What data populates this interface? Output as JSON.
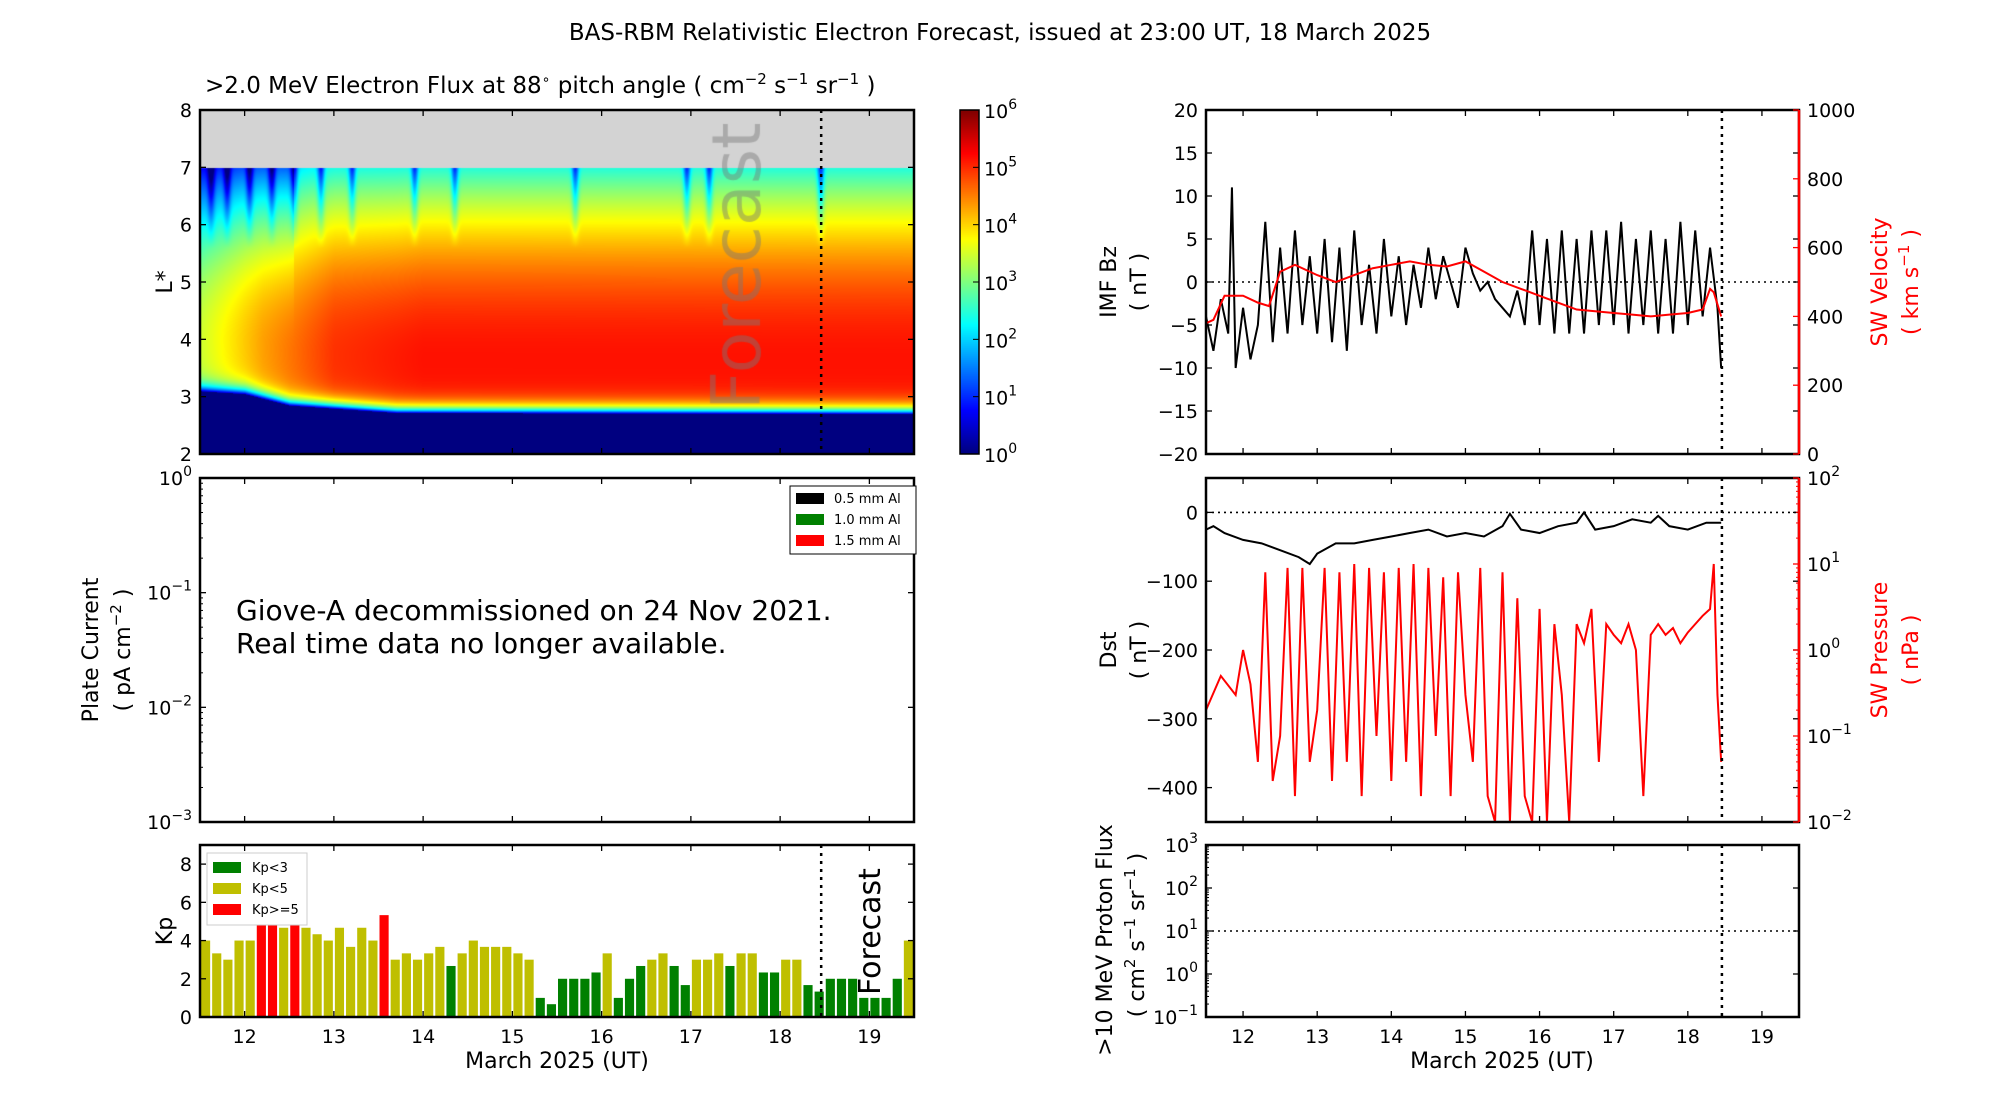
{
  "title": "BAS-RBM Relativistic Electron Forecast, issued at 23:00 UT, 18 March 2025",
  "forecast_label": "Forecast",
  "x_axis_label": "March 2025 (UT)",
  "x_ticks": [
    "12",
    "13",
    "14",
    "15",
    "16",
    "17",
    "18",
    "19"
  ],
  "forecast_start_day": 18.46,
  "colors": {
    "kp_low": "#008000",
    "kp_mid": "#bfbf00",
    "kp_high": "#ff0000",
    "secondary_axis": "#ff0000",
    "no_data": "#d3d3d3"
  },
  "chart_data": [
    {
      "type": "heatmap",
      "title": {
        "main": ">2.0 MeV Electron Flux at 88",
        "deg": "∘",
        "mid": " pitch angle ( cm",
        "e1": "−2",
        "s": " s",
        "e2": "−1",
        "sr": " sr",
        "e3": "−1",
        "end": " )"
      },
      "ylabel": "L*",
      "x_range": [
        11.5,
        19.5
      ],
      "ylim": [
        2,
        8
      ],
      "y_ticks": [
        "2",
        "3",
        "4",
        "5",
        "6",
        "7",
        "8"
      ],
      "colorbar": {
        "scale": "log",
        "range": [
          1,
          1000000
        ],
        "ticks": [
          {
            "base": "10",
            "exp": "0"
          },
          {
            "base": "10",
            "exp": "1"
          },
          {
            "base": "10",
            "exp": "2"
          },
          {
            "base": "10",
            "exp": "3"
          },
          {
            "base": "10",
            "exp": "4"
          },
          {
            "base": "10",
            "exp": "5"
          },
          {
            "base": "10",
            "exp": "6"
          }
        ],
        "colormap": "jet"
      },
      "outer_boundary_L": 7,
      "inner_edge_L": [
        {
          "day": 11.5,
          "L": 3.1
        },
        {
          "day": 12.0,
          "L": 3.05
        },
        {
          "day": 12.5,
          "L": 2.85
        },
        {
          "day": 13.7,
          "L": 2.72
        },
        {
          "day": 19.5,
          "L": 2.7
        }
      ],
      "peak_log_flux": [
        {
          "day": 11.5,
          "value": 3.3
        },
        {
          "day": 12.2,
          "value": 4.2
        },
        {
          "day": 13.0,
          "value": 4.9
        },
        {
          "day": 14.0,
          "value": 5.1
        },
        {
          "day": 19.5,
          "value": 5.1
        }
      ]
    },
    {
      "type": "line",
      "ylabel": {
        "l1": "Plate Current",
        "l2a": "( pA cm",
        "l2e": "−2",
        "l2b": " )"
      },
      "y_scale": "log",
      "ylim": [
        0.001,
        1
      ],
      "y_ticks": [
        {
          "base": "10",
          "exp": "0"
        },
        {
          "base": "10",
          "exp": "−1"
        },
        {
          "base": "10",
          "exp": "−2"
        },
        {
          "base": "10",
          "exp": "−3"
        }
      ],
      "annotation": [
        "Giove-A decommissioned on 24 Nov 2021.",
        "Real time data no longer available."
      ],
      "legend": [
        {
          "label": "0.5 mm Al",
          "color": "#000000"
        },
        {
          "label": "1.0 mm Al",
          "color": "#008000"
        },
        {
          "label": "1.5 mm Al",
          "color": "#ff0000"
        }
      ],
      "legend_position": "top-right"
    },
    {
      "type": "bar",
      "ylabel": "Kp",
      "ylim": [
        0,
        9
      ],
      "y_ticks": [
        "0",
        "2",
        "4",
        "6",
        "8"
      ],
      "x_start": 11.5,
      "bin_hours": 3,
      "legend": [
        {
          "label": "Kp<3",
          "color": "#008000"
        },
        {
          "label": "Kp<5",
          "color": "#bfbf00"
        },
        {
          "label": "Kp>=5",
          "color": "#ff0000"
        }
      ],
      "legend_position": "top-left",
      "values": [
        4,
        3.33,
        3,
        4,
        4,
        5,
        5,
        4.67,
        5,
        4.67,
        4.33,
        4,
        4.67,
        3.67,
        4.67,
        4,
        5.33,
        3,
        3.33,
        3,
        3.33,
        3.67,
        2.67,
        3.33,
        4,
        3.67,
        3.67,
        3.67,
        3.33,
        3,
        1,
        0.67,
        2,
        2,
        2,
        2.33,
        3.33,
        1,
        2,
        2.67,
        3,
        3.33,
        2.67,
        1.67,
        3,
        3,
        3.33,
        2.67,
        3.33,
        3.33,
        2.33,
        2.33,
        3,
        3,
        1.67,
        1.33,
        2,
        2,
        2,
        1,
        1,
        1,
        2,
        4
      ]
    },
    {
      "type": "line",
      "ylabel": {
        "l1": "IMF Bz",
        "l2": "( nT )"
      },
      "ylim": [
        -20,
        20
      ],
      "y_ticks": [
        "−20",
        "−15",
        "−10",
        "−5",
        "0",
        "5",
        "10",
        "15",
        "20"
      ],
      "y2label": {
        "l1": "SW Velocity",
        "l2a": "( km s",
        "l2e": "−1",
        "l2b": " )"
      },
      "y2lim": [
        0,
        1000
      ],
      "y2_ticks": [
        "0",
        "200",
        "400",
        "600",
        "800",
        "1000"
      ],
      "reference_line_y": 0,
      "series": [
        {
          "axis": "left",
          "color": "#000000",
          "x": [
            11.5,
            11.6,
            11.7,
            11.8,
            11.85,
            11.9,
            12.0,
            12.1,
            12.2,
            12.3,
            12.4,
            12.5,
            12.6,
            12.7,
            12.8,
            12.9,
            13.0,
            13.1,
            13.2,
            13.3,
            13.4,
            13.5,
            13.6,
            13.7,
            13.8,
            13.9,
            14.0,
            14.1,
            14.2,
            14.3,
            14.4,
            14.5,
            14.6,
            14.7,
            14.8,
            14.9,
            15.0,
            15.1,
            15.2,
            15.3,
            15.4,
            15.5,
            15.6,
            15.7,
            15.8,
            15.9,
            16.0,
            16.1,
            16.2,
            16.3,
            16.4,
            16.5,
            16.6,
            16.7,
            16.8,
            16.9,
            17.0,
            17.1,
            17.2,
            17.3,
            17.4,
            17.5,
            17.6,
            17.7,
            17.8,
            17.9,
            18.0,
            18.1,
            18.2,
            18.3,
            18.4,
            18.45
          ],
          "y": [
            -4,
            -8,
            -2,
            -6,
            11,
            -10,
            -3,
            -9,
            -5,
            7,
            -7,
            4,
            -6,
            6,
            -5,
            3,
            -6,
            5,
            -7,
            4,
            -8,
            6,
            -5,
            2,
            -6,
            5,
            -4,
            3,
            -5,
            2,
            -3,
            4,
            -2,
            3,
            0,
            -3,
            4,
            1,
            -1,
            0,
            -2,
            -3,
            -4,
            -1,
            -5,
            6,
            -5,
            5,
            -6,
            6,
            -6,
            5,
            -6,
            6,
            -5,
            6,
            -5,
            7,
            -6,
            5,
            -5,
            6,
            -6,
            5,
            -6,
            7,
            -5,
            6,
            -4,
            4,
            -3,
            -10
          ]
        },
        {
          "axis": "right",
          "color": "#ff0000",
          "x": [
            11.5,
            11.6,
            11.75,
            12.0,
            12.2,
            12.35,
            12.5,
            12.7,
            13.0,
            13.25,
            13.5,
            13.75,
            14.0,
            14.25,
            14.5,
            14.75,
            15.0,
            15.25,
            15.5,
            15.75,
            16.0,
            16.25,
            16.5,
            16.75,
            17.0,
            17.25,
            17.5,
            17.75,
            18.0,
            18.2,
            18.3,
            18.35,
            18.45
          ],
          "y": [
            380,
            390,
            460,
            460,
            440,
            430,
            530,
            550,
            520,
            500,
            520,
            540,
            550,
            560,
            550,
            545,
            560,
            530,
            500,
            480,
            460,
            440,
            420,
            415,
            410,
            405,
            400,
            405,
            410,
            420,
            480,
            470,
            400
          ]
        }
      ]
    },
    {
      "type": "line",
      "ylabel": {
        "l1": "Dst",
        "l2": "( nT )"
      },
      "ylim": [
        -450,
        50
      ],
      "y_ticks": [
        "−400",
        "−300",
        "−200",
        "−100",
        "0"
      ],
      "y2label": {
        "l1": "SW Pressure",
        "l2": "( nPa )"
      },
      "y2_scale": "log",
      "y2lim": [
        0.01,
        100
      ],
      "y2_ticks": [
        {
          "base": "10",
          "exp": "−2"
        },
        {
          "base": "10",
          "exp": "−1"
        },
        {
          "base": "10",
          "exp": "0"
        },
        {
          "base": "10",
          "exp": "1"
        },
        {
          "base": "10",
          "exp": "2"
        }
      ],
      "reference_line_y": 0,
      "series": [
        {
          "axis": "left",
          "color": "#000000",
          "x": [
            11.5,
            11.6,
            11.75,
            12.0,
            12.25,
            12.5,
            12.75,
            12.9,
            13.0,
            13.25,
            13.5,
            13.75,
            14.0,
            14.25,
            14.5,
            14.75,
            15.0,
            15.25,
            15.5,
            15.6,
            15.75,
            16.0,
            16.25,
            16.5,
            16.6,
            16.75,
            17.0,
            17.25,
            17.5,
            17.6,
            17.75,
            18.0,
            18.25,
            18.45
          ],
          "y": [
            -25,
            -20,
            -30,
            -40,
            -45,
            -55,
            -65,
            -75,
            -60,
            -45,
            -45,
            -40,
            -35,
            -30,
            -25,
            -35,
            -30,
            -35,
            -20,
            -2,
            -25,
            -30,
            -20,
            -15,
            0,
            -25,
            -20,
            -10,
            -15,
            -5,
            -20,
            -25,
            -15,
            -15
          ]
        },
        {
          "axis": "right",
          "color": "#ff0000",
          "x": [
            11.5,
            11.7,
            11.9,
            12.0,
            12.1,
            12.2,
            12.3,
            12.4,
            12.5,
            12.6,
            12.7,
            12.8,
            12.9,
            13.0,
            13.1,
            13.2,
            13.3,
            13.4,
            13.5,
            13.6,
            13.7,
            13.8,
            13.9,
            14.0,
            14.1,
            14.2,
            14.3,
            14.4,
            14.5,
            14.6,
            14.7,
            14.8,
            14.9,
            15.0,
            15.1,
            15.2,
            15.3,
            15.4,
            15.5,
            15.6,
            15.7,
            15.8,
            15.9,
            16.0,
            16.1,
            16.2,
            16.3,
            16.4,
            16.5,
            16.6,
            16.7,
            16.8,
            16.9,
            17.0,
            17.1,
            17.2,
            17.3,
            17.4,
            17.5,
            17.6,
            17.7,
            17.8,
            17.9,
            18.0,
            18.1,
            18.2,
            18.3,
            18.35,
            18.4,
            18.45
          ],
          "y": [
            0.2,
            0.5,
            0.3,
            1.0,
            0.4,
            0.05,
            8,
            0.03,
            0.1,
            9,
            0.02,
            9,
            0.05,
            0.2,
            9,
            0.03,
            8,
            0.05,
            10,
            0.02,
            9,
            0.1,
            8,
            0.03,
            9,
            0.05,
            10,
            0.02,
            9,
            0.1,
            7,
            0.02,
            8,
            0.3,
            0.05,
            9,
            0.02,
            0.01,
            8,
            0.01,
            4,
            0.02,
            0.01,
            3,
            0.01,
            2,
            0.3,
            0.01,
            2,
            1.2,
            3,
            0.05,
            2,
            1.5,
            1.2,
            2,
            1.0,
            0.02,
            1.5,
            2,
            1.5,
            1.8,
            1.2,
            1.6,
            2,
            2.5,
            3,
            10,
            0.3,
            0.05
          ]
        }
      ]
    },
    {
      "type": "line",
      "ylabel": {
        "l1": ">10 MeV Proton Flux",
        "l2a": "( cm",
        "l2e1": "2",
        "l2b": " s",
        "l2e2": "−1",
        "l2c": " sr",
        "l2e3": "−1",
        "l2d": " )"
      },
      "y_scale": "log",
      "ylim": [
        0.1,
        1000
      ],
      "y_ticks": [
        {
          "base": "10",
          "exp": "−1"
        },
        {
          "base": "10",
          "exp": "0"
        },
        {
          "base": "10",
          "exp": "1"
        },
        {
          "base": "10",
          "exp": "2"
        },
        {
          "base": "10",
          "exp": "3"
        }
      ],
      "reference_line_y": 10,
      "series": []
    }
  ]
}
